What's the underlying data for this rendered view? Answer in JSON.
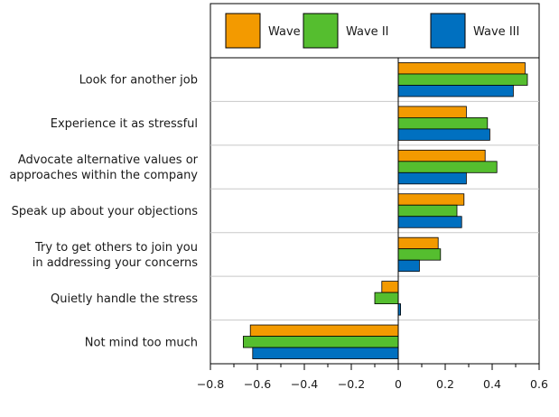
{
  "chart_data": {
    "type": "bar",
    "orientation": "horizontal",
    "categories": [
      [
        "Look for another job"
      ],
      [
        "Experience it as stressful"
      ],
      [
        "Advocate alternative values or",
        "approaches within the company"
      ],
      [
        "Speak up about your objections"
      ],
      [
        "Try to get others to join you",
        "in addressing your concerns"
      ],
      [
        "Quietly handle the stress"
      ],
      [
        "Not mind too much"
      ]
    ],
    "series": [
      {
        "name": "Wave I",
        "color": "#f39a00",
        "values": [
          0.54,
          0.29,
          0.37,
          0.28,
          0.17,
          -0.07,
          -0.63
        ]
      },
      {
        "name": "Wave II",
        "color": "#55be2f",
        "values": [
          0.55,
          0.38,
          0.42,
          0.25,
          0.18,
          -0.1,
          -0.66
        ]
      },
      {
        "name": "Wave III",
        "color": "#0070c0",
        "values": [
          0.49,
          0.39,
          0.29,
          0.27,
          0.09,
          0.01,
          -0.62
        ]
      }
    ],
    "xlim": [
      -0.8,
      0.6
    ],
    "xticks": [
      -0.8,
      -0.6,
      -0.4,
      -0.2,
      0,
      0.2,
      0.4,
      0.6
    ],
    "xtick_labels": [
      "−0.8",
      "−0.6",
      "−0.4",
      "−0.2",
      "0",
      "0.2",
      "0.4",
      "0.6"
    ],
    "legend_position": "top",
    "grid": "horizontal separators between categories"
  }
}
